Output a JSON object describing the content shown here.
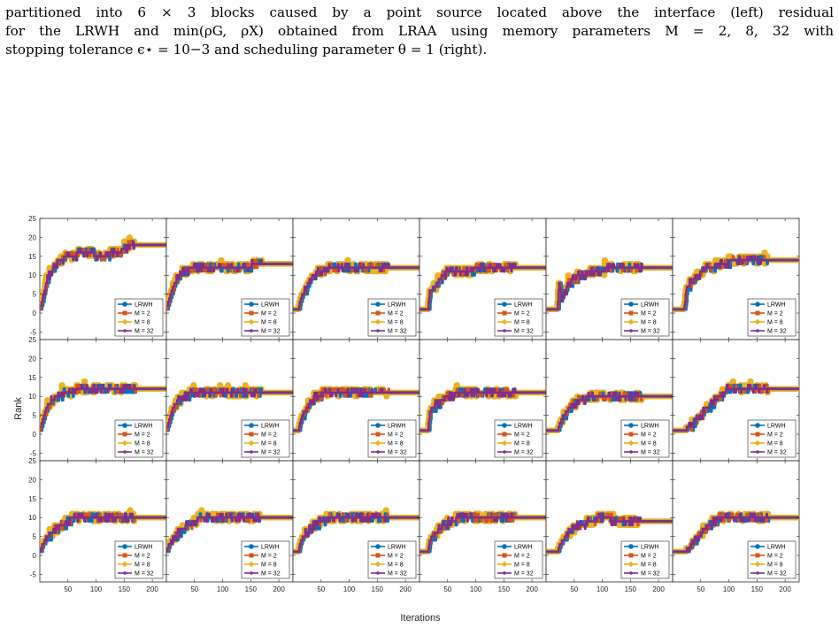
{
  "caption": {
    "line1": "partitioned into 6 × 3 blocks caused by a point source located above the interface (left) residual",
    "line2": "for the LRWH and min(ρG, ρX) obtained from LRAA using memory parameters M = 2, 8, 32 with",
    "line3": "stopping tolerance ϵ⋆ = 10−3 and scheduling parameter θ = 1 (right)."
  },
  "figure": {
    "ylabel": "Rank",
    "xlabel": "Iterations",
    "legend": [
      "LRWH",
      "M = 2",
      "M = 8",
      "M = 32"
    ]
  },
  "chart_data": {
    "type": "line",
    "layout": "small multiples, 3 rows × 6 columns, shared axes",
    "xlabel": "Iterations",
    "ylabel": "Rank",
    "xlim": [
      0,
      225
    ],
    "ylim": [
      -7,
      25
    ],
    "xticks": [
      50,
      100,
      150,
      200
    ],
    "yticks": [
      -5,
      0,
      5,
      10,
      15,
      20,
      25
    ],
    "legend_position": "bottom-right",
    "series_meta": [
      {
        "name": "LRWH",
        "color": "#0072bd",
        "marker": "circle"
      },
      {
        "name": "M = 2",
        "color": "#d95319",
        "marker": "square"
      },
      {
        "name": "M = 8",
        "color": "#edb120",
        "marker": "diamond"
      },
      {
        "name": "M = 32",
        "color": "#7e2f8e",
        "marker": "circle"
      }
    ],
    "panels": [
      {
        "row": 1,
        "col": 1,
        "end_iter": 225,
        "plateau": 18,
        "delay": 0,
        "profile": [
          [
            0,
            1
          ],
          [
            5,
            4
          ],
          [
            15,
            10
          ],
          [
            25,
            12
          ],
          [
            35,
            14
          ],
          [
            50,
            15
          ],
          [
            80,
            16
          ],
          [
            110,
            15
          ],
          [
            140,
            16
          ],
          [
            160,
            18
          ],
          [
            225,
            18
          ]
        ]
      },
      {
        "row": 1,
        "col": 2,
        "end_iter": 225,
        "plateau": 13,
        "delay": 0,
        "profile": [
          [
            0,
            1
          ],
          [
            5,
            4
          ],
          [
            15,
            8
          ],
          [
            30,
            11
          ],
          [
            50,
            12
          ],
          [
            75,
            12
          ],
          [
            100,
            12
          ],
          [
            140,
            12
          ],
          [
            160,
            13
          ],
          [
            225,
            13
          ]
        ]
      },
      {
        "row": 1,
        "col": 3,
        "end_iter": 225,
        "plateau": 12,
        "delay": 10,
        "profile": [
          [
            0,
            1
          ],
          [
            10,
            1
          ],
          [
            14,
            4
          ],
          [
            25,
            7
          ],
          [
            35,
            10
          ],
          [
            50,
            11
          ],
          [
            70,
            12
          ],
          [
            225,
            12
          ]
        ]
      },
      {
        "row": 1,
        "col": 4,
        "end_iter": 225,
        "plateau": 12,
        "delay": 15,
        "profile": [
          [
            0,
            1
          ],
          [
            15,
            1
          ],
          [
            18,
            6
          ],
          [
            30,
            7
          ],
          [
            40,
            10
          ],
          [
            55,
            11
          ],
          [
            80,
            11
          ],
          [
            110,
            12
          ],
          [
            225,
            12
          ]
        ]
      },
      {
        "row": 1,
        "col": 5,
        "end_iter": 225,
        "plateau": 12,
        "delay": 20,
        "profile": [
          [
            0,
            1
          ],
          [
            20,
            1
          ],
          [
            23,
            8
          ],
          [
            28,
            4
          ],
          [
            40,
            8
          ],
          [
            60,
            10
          ],
          [
            90,
            11
          ],
          [
            120,
            12
          ],
          [
            225,
            12
          ]
        ]
      },
      {
        "row": 1,
        "col": 6,
        "end_iter": 225,
        "plateau": 14,
        "delay": 20,
        "profile": [
          [
            0,
            1
          ],
          [
            20,
            1
          ],
          [
            25,
            7
          ],
          [
            35,
            8
          ],
          [
            45,
            10
          ],
          [
            60,
            12
          ],
          [
            90,
            13
          ],
          [
            110,
            14
          ],
          [
            225,
            14
          ]
        ]
      },
      {
        "row": 2,
        "col": 1,
        "end_iter": 225,
        "plateau": 12,
        "delay": 0,
        "profile": [
          [
            0,
            1
          ],
          [
            5,
            4
          ],
          [
            15,
            8
          ],
          [
            30,
            10
          ],
          [
            50,
            11
          ],
          [
            75,
            12
          ],
          [
            225,
            12
          ]
        ]
      },
      {
        "row": 2,
        "col": 2,
        "end_iter": 225,
        "plateau": 11,
        "delay": 0,
        "profile": [
          [
            0,
            1
          ],
          [
            5,
            4
          ],
          [
            15,
            8
          ],
          [
            30,
            10
          ],
          [
            50,
            11
          ],
          [
            225,
            11
          ]
        ]
      },
      {
        "row": 2,
        "col": 3,
        "end_iter": 225,
        "plateau": 11,
        "delay": 10,
        "profile": [
          [
            0,
            1
          ],
          [
            10,
            1
          ],
          [
            14,
            4
          ],
          [
            25,
            7
          ],
          [
            40,
            10
          ],
          [
            60,
            11
          ],
          [
            225,
            11
          ]
        ]
      },
      {
        "row": 2,
        "col": 4,
        "end_iter": 225,
        "plateau": 11,
        "delay": 15,
        "profile": [
          [
            0,
            1
          ],
          [
            15,
            1
          ],
          [
            18,
            6
          ],
          [
            30,
            8
          ],
          [
            50,
            10
          ],
          [
            75,
            11
          ],
          [
            225,
            11
          ]
        ]
      },
      {
        "row": 2,
        "col": 5,
        "end_iter": 225,
        "plateau": 10,
        "delay": 20,
        "profile": [
          [
            0,
            1
          ],
          [
            20,
            1
          ],
          [
            25,
            3
          ],
          [
            40,
            7
          ],
          [
            60,
            9
          ],
          [
            80,
            10
          ],
          [
            225,
            10
          ]
        ]
      },
      {
        "row": 2,
        "col": 6,
        "end_iter": 225,
        "plateau": 12,
        "delay": 20,
        "profile": [
          [
            0,
            1
          ],
          [
            20,
            1
          ],
          [
            30,
            2
          ],
          [
            50,
            5
          ],
          [
            70,
            8
          ],
          [
            90,
            11
          ],
          [
            100,
            12
          ],
          [
            225,
            12
          ]
        ]
      },
      {
        "row": 3,
        "col": 1,
        "end_iter": 225,
        "plateau": 10,
        "delay": 0,
        "profile": [
          [
            0,
            1
          ],
          [
            5,
            3
          ],
          [
            20,
            6
          ],
          [
            40,
            8
          ],
          [
            60,
            10
          ],
          [
            225,
            10
          ]
        ]
      },
      {
        "row": 3,
        "col": 2,
        "end_iter": 225,
        "plateau": 10,
        "delay": 0,
        "profile": [
          [
            0,
            1
          ],
          [
            5,
            3
          ],
          [
            20,
            6
          ],
          [
            40,
            8
          ],
          [
            60,
            10
          ],
          [
            225,
            10
          ]
        ]
      },
      {
        "row": 3,
        "col": 3,
        "end_iter": 225,
        "plateau": 10,
        "delay": 10,
        "profile": [
          [
            0,
            1
          ],
          [
            10,
            1
          ],
          [
            14,
            4
          ],
          [
            30,
            7
          ],
          [
            50,
            9
          ],
          [
            70,
            10
          ],
          [
            225,
            10
          ]
        ]
      },
      {
        "row": 3,
        "col": 4,
        "end_iter": 225,
        "plateau": 10,
        "delay": 15,
        "profile": [
          [
            0,
            1
          ],
          [
            15,
            1
          ],
          [
            18,
            4
          ],
          [
            35,
            7
          ],
          [
            55,
            9
          ],
          [
            75,
            10
          ],
          [
            225,
            10
          ]
        ]
      },
      {
        "row": 3,
        "col": 5,
        "end_iter": 225,
        "plateau": 9,
        "delay": 20,
        "profile": [
          [
            0,
            1
          ],
          [
            20,
            1
          ],
          [
            25,
            3
          ],
          [
            40,
            6
          ],
          [
            60,
            8
          ],
          [
            80,
            9
          ],
          [
            100,
            10
          ],
          [
            130,
            9
          ],
          [
            225,
            9
          ]
        ]
      },
      {
        "row": 3,
        "col": 6,
        "end_iter": 225,
        "plateau": 10,
        "delay": 20,
        "profile": [
          [
            0,
            1
          ],
          [
            20,
            1
          ],
          [
            30,
            2
          ],
          [
            45,
            5
          ],
          [
            65,
            8
          ],
          [
            85,
            10
          ],
          [
            225,
            10
          ]
        ]
      }
    ]
  }
}
